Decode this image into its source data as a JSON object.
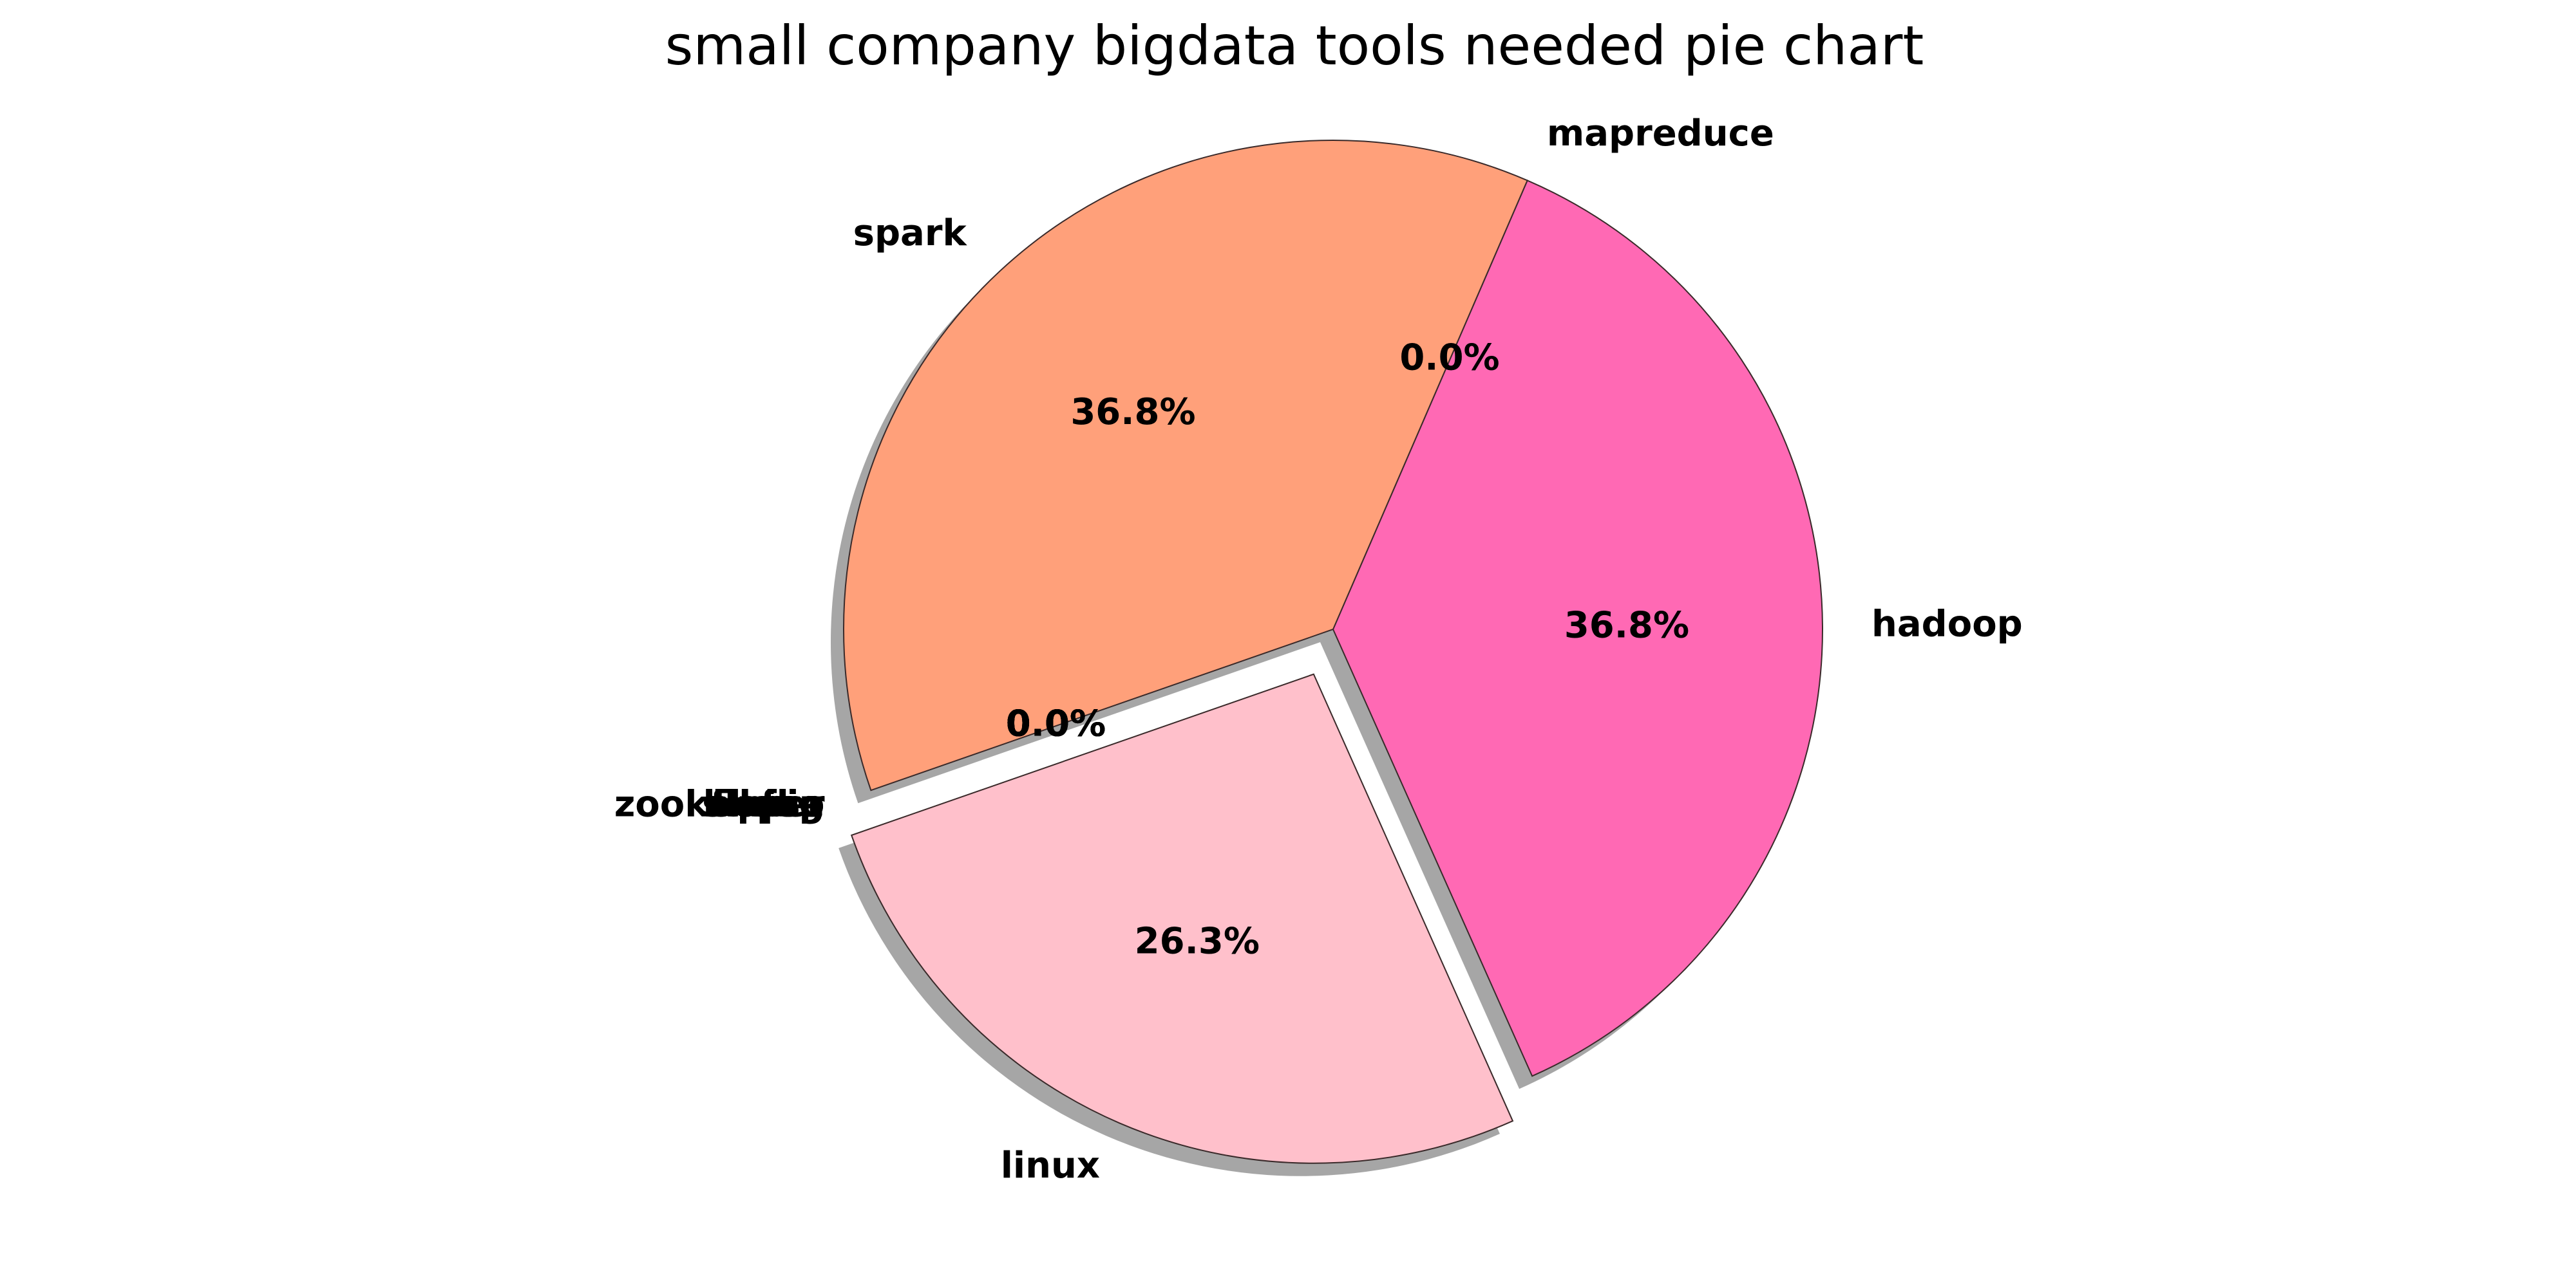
{
  "chart_data": {
    "type": "pie",
    "title": "small company bigdata tools needed pie chart",
    "categories": [
      "hadoop",
      "mapreduce",
      "spark",
      "hbase",
      "hive",
      "pig",
      "flume",
      "sqoop",
      "kafka",
      "zookeeper",
      "linux"
    ],
    "values": [
      36.8,
      0.0,
      36.8,
      0.0,
      0.0,
      0.0,
      0.0,
      0.0,
      0.0,
      0.0,
      26.3
    ],
    "percent_labels": [
      "36.8%",
      "0.0%",
      "36.8%",
      "0.0%",
      "0.0%",
      "0.0%",
      "0.0%",
      "0.0%",
      "0.0%",
      "0.0%",
      "26.3%"
    ],
    "colors": [
      "#ff69b4",
      "#ffa07a",
      "#ffa07a",
      "#ffa07a",
      "#ffa07a",
      "#ffa07a",
      "#ffa07a",
      "#ffa07a",
      "#ffa07a",
      "#ffa07a",
      "#ffc0cb"
    ],
    "explode": [
      0,
      0,
      0,
      0,
      0,
      0,
      0,
      0,
      0,
      0,
      0.1
    ],
    "start_angle_deg": -66,
    "shadow": true,
    "legend": "none"
  }
}
